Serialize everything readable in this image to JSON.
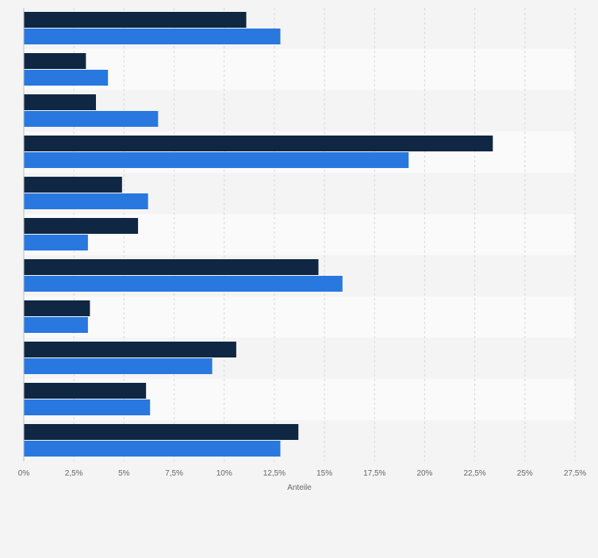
{
  "colors": {
    "page_bg": "#f4f4f4",
    "band_a": "#f4f4f4",
    "band_b": "#fafafa",
    "grid": "#d8d8d8",
    "axis": "#bdbdbd",
    "tick_text": "#666666"
  },
  "chart_data": {
    "type": "bar",
    "orientation": "horizontal",
    "categories": [
      "",
      "",
      "",
      "",
      "",
      "",
      "",
      "",
      "",
      "",
      ""
    ],
    "series": [
      {
        "color": "#0f2742",
        "values": [
          11.1,
          3.1,
          3.6,
          23.4,
          4.9,
          5.7,
          14.7,
          3.3,
          10.6,
          6.1,
          13.7
        ]
      },
      {
        "color": "#2878e0",
        "values": [
          12.8,
          4.2,
          6.7,
          19.2,
          6.2,
          3.2,
          15.9,
          3.2,
          9.4,
          6.3,
          12.8
        ]
      }
    ],
    "xlim": [
      0,
      27.5
    ],
    "xticks": [
      0,
      2.5,
      5,
      7.5,
      10,
      12.5,
      15,
      17.5,
      20,
      22.5,
      25,
      27.5
    ],
    "xtick_labels": [
      "0%",
      "2,5%",
      "5%",
      "7,5%",
      "10%",
      "12,5%",
      "15%",
      "17,5%",
      "20%",
      "22,5%",
      "25%",
      "27,5%"
    ],
    "xlabel": "Anteile",
    "ylabel": "",
    "title": "",
    "grid": true,
    "grid_style": "dashed-vertical",
    "legend": "none"
  }
}
